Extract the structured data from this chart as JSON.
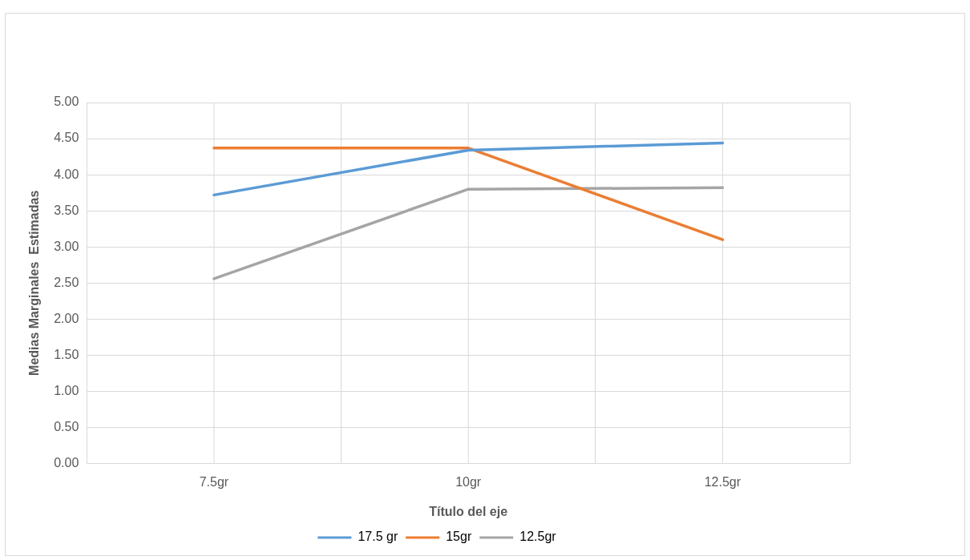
{
  "chart_data": {
    "type": "line",
    "xlabel": "Título del eje",
    "ylabel": "Medias Marginales  Estimadas",
    "categories": [
      "7.5gr",
      "10gr",
      "12.5gr"
    ],
    "series": [
      {
        "name": "17.5 gr",
        "color": "#5b9bd5",
        "values": [
          3.72,
          4.34,
          4.44
        ]
      },
      {
        "name": "15gr",
        "color": "#ed7d31",
        "values": [
          4.37,
          4.37,
          3.1
        ]
      },
      {
        "name": "12.5gr",
        "color": "#a5a5a5",
        "values": [
          2.56,
          3.8,
          3.82
        ]
      }
    ],
    "ylim": [
      0,
      5
    ],
    "yticks": [
      {
        "value": 0,
        "label": "0.00"
      },
      {
        "value": 0.5,
        "label": "0.50"
      },
      {
        "value": 1,
        "label": "1.00"
      },
      {
        "value": 1.5,
        "label": "1.50"
      },
      {
        "value": 2,
        "label": "2.00"
      },
      {
        "value": 2.5,
        "label": "2.50"
      },
      {
        "value": 3,
        "label": "3.00"
      },
      {
        "value": 3.5,
        "label": "3.50"
      },
      {
        "value": 4,
        "label": "4.00"
      },
      {
        "value": 4.5,
        "label": "4.50"
      },
      {
        "value": 5,
        "label": "5.00"
      }
    ],
    "grid": true,
    "legend": "bottom",
    "marker": "none",
    "line_style": "solid"
  }
}
